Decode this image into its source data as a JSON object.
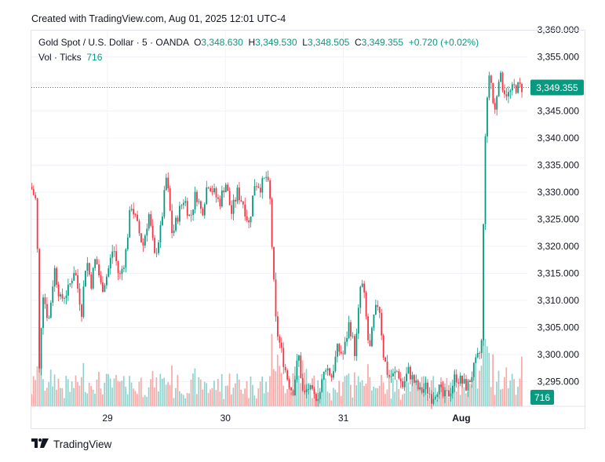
{
  "header": {
    "created_text": "Created with TradingView.com, Aug 01, 2025 12:01 UTC-4"
  },
  "legend": {
    "symbol": "Gold Spot / U.S. Dollar · 5 · OANDA",
    "open_label": "O",
    "open": "3,348.630",
    "high_label": "H",
    "high": "3,349.530",
    "low_label": "L",
    "low": "3,348.505",
    "close_label": "C",
    "close": "3,349.355",
    "change": "+0.720 (+0.02%)",
    "vol_label": "Vol · Ticks",
    "vol_value": "716"
  },
  "footer": {
    "brand": "TradingView"
  },
  "colors": {
    "up": "#089981",
    "down": "#f23645",
    "up_vol": "#92d2cc",
    "down_vol": "#f7a9a7",
    "grid": "#f0f3fa",
    "axis_text": "#131722"
  },
  "chart_data": {
    "type": "candlestick",
    "ylim": [
      3291,
      3361
    ],
    "y_ticks": [
      "3,295.000",
      "3,300.000",
      "3,305.000",
      "3,310.000",
      "3,315.000",
      "3,320.000",
      "3,325.000",
      "3,330.000",
      "3,335.000",
      "3,340.000",
      "3,345.000",
      "3,350.000",
      "3,355.000",
      "3,360.000"
    ],
    "y_tick_values": [
      3295,
      3300,
      3305,
      3310,
      3315,
      3320,
      3325,
      3330,
      3335,
      3340,
      3345,
      3350,
      3355,
      3360
    ],
    "x_ticks": [
      "29",
      "30",
      "31",
      "Aug"
    ],
    "x_tick_days": [
      1,
      2,
      3,
      4
    ],
    "days_span": [
      0.35,
      4.52
    ],
    "last_price_label": "3,349.355",
    "last_price": 3349.355,
    "volume_label": "716",
    "price_path": [
      [
        0.35,
        3331
      ],
      [
        0.4,
        3328
      ],
      [
        0.42,
        3296
      ],
      [
        0.45,
        3312
      ],
      [
        0.5,
        3306
      ],
      [
        0.55,
        3316
      ],
      [
        0.6,
        3310
      ],
      [
        0.67,
        3312
      ],
      [
        0.72,
        3316
      ],
      [
        0.78,
        3308
      ],
      [
        0.82,
        3318
      ],
      [
        0.86,
        3313
      ],
      [
        0.9,
        3318
      ],
      [
        0.95,
        3312
      ],
      [
        1.0,
        3315
      ],
      [
        1.05,
        3320
      ],
      [
        1.1,
        3314
      ],
      [
        1.15,
        3318
      ],
      [
        1.2,
        3328
      ],
      [
        1.25,
        3324
      ],
      [
        1.3,
        3320
      ],
      [
        1.35,
        3326
      ],
      [
        1.4,
        3318
      ],
      [
        1.45,
        3323
      ],
      [
        1.5,
        3333
      ],
      [
        1.55,
        3322
      ],
      [
        1.6,
        3326
      ],
      [
        1.65,
        3329
      ],
      [
        1.7,
        3325
      ],
      [
        1.75,
        3330
      ],
      [
        1.8,
        3326
      ],
      [
        1.85,
        3332
      ],
      [
        1.9,
        3330
      ],
      [
        1.95,
        3328
      ],
      [
        2.0,
        3332
      ],
      [
        2.05,
        3326
      ],
      [
        2.1,
        3330
      ],
      [
        2.15,
        3328
      ],
      [
        2.2,
        3324
      ],
      [
        2.25,
        3332
      ],
      [
        2.3,
        3331
      ],
      [
        2.35,
        3333
      ],
      [
        2.38,
        3328
      ],
      [
        2.4,
        3317
      ],
      [
        2.43,
        3305
      ],
      [
        2.48,
        3300
      ],
      [
        2.52,
        3296
      ],
      [
        2.57,
        3293
      ],
      [
        2.62,
        3300
      ],
      [
        2.66,
        3292
      ],
      [
        2.7,
        3294
      ],
      [
        2.75,
        3292
      ],
      [
        2.8,
        3293
      ],
      [
        2.85,
        3298
      ],
      [
        2.9,
        3296
      ],
      [
        2.95,
        3301
      ],
      [
        3.0,
        3300
      ],
      [
        3.05,
        3306
      ],
      [
        3.1,
        3300
      ],
      [
        3.15,
        3314
      ],
      [
        3.18,
        3310
      ],
      [
        3.22,
        3300
      ],
      [
        3.26,
        3307
      ],
      [
        3.3,
        3310
      ],
      [
        3.34,
        3300
      ],
      [
        3.38,
        3296
      ],
      [
        3.42,
        3296
      ],
      [
        3.46,
        3297
      ],
      [
        3.5,
        3294
      ],
      [
        3.55,
        3297
      ],
      [
        3.6,
        3295
      ],
      [
        3.65,
        3293
      ],
      [
        3.7,
        3294
      ],
      [
        3.75,
        3292
      ],
      [
        3.8,
        3294
      ],
      [
        3.85,
        3292
      ],
      [
        3.9,
        3293
      ],
      [
        3.95,
        3296
      ],
      [
        4.0,
        3295
      ],
      [
        4.05,
        3294
      ],
      [
        4.1,
        3297
      ],
      [
        4.15,
        3300
      ],
      [
        4.17,
        3301
      ],
      [
        4.2,
        3340
      ],
      [
        4.24,
        3353
      ],
      [
        4.28,
        3344
      ],
      [
        4.32,
        3352
      ],
      [
        4.36,
        3349
      ],
      [
        4.4,
        3348
      ],
      [
        4.45,
        3349.355
      ]
    ]
  }
}
